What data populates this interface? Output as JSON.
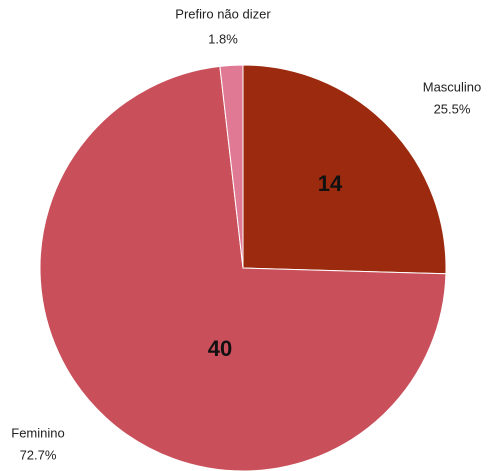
{
  "chart_data": {
    "type": "pie",
    "categories": [
      "Masculino",
      "Feminino",
      "Prefiro não dizer"
    ],
    "values": [
      14,
      40,
      1
    ],
    "percent_labels": [
      "25.5%",
      "72.7%",
      "1.8%"
    ],
    "colors": [
      "#9c2a0e",
      "#c9505b",
      "#e07a94"
    ]
  }
}
